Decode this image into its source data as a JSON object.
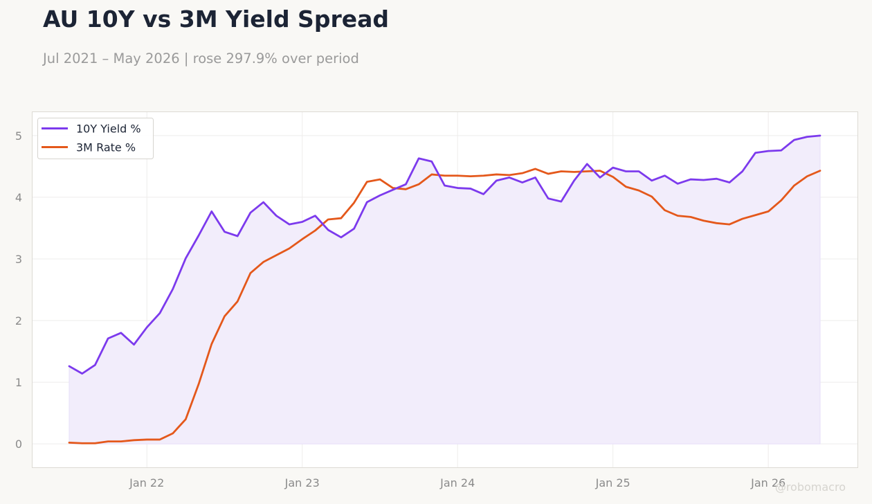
{
  "header": {
    "title": "AU 10Y vs 3M Yield Spread",
    "subtitle": "Jul 2021 – May 2026 | rose 297.9% over period"
  },
  "watermark": "@robomacro",
  "colors": {
    "background": "#f9f8f5",
    "plot_background": "#ffffff",
    "series_10y": "#7c3aed",
    "series_3m": "#e4581b",
    "fill": "#f2edfb",
    "title": "#1c2435",
    "muted": "#9a9a9a"
  },
  "chart_data": {
    "type": "line",
    "title": "AU 10Y vs 3M Yield Spread",
    "subtitle": "Jul 2021 – May 2026 | rose 297.9% over period",
    "xlabel": "",
    "ylabel": "",
    "x_start": "2021-07",
    "x_end": "2026-05",
    "xticks": [
      {
        "date": "2022-01",
        "label": "Jan 22"
      },
      {
        "date": "2023-01",
        "label": "Jan 23"
      },
      {
        "date": "2024-01",
        "label": "Jan 24"
      },
      {
        "date": "2025-01",
        "label": "Jan 25"
      },
      {
        "date": "2026-01",
        "label": "Jan 26"
      }
    ],
    "yticks": [
      0,
      1,
      2,
      3,
      4,
      5
    ],
    "ylim": [
      -0.38,
      5.38
    ],
    "grid": true,
    "legend_position": "top-left",
    "fill_between": "area under 10Y Yield % to zero",
    "x": [
      "2021-07",
      "2021-08",
      "2021-09",
      "2021-10",
      "2021-11",
      "2021-12",
      "2022-01",
      "2022-02",
      "2022-03",
      "2022-04",
      "2022-05",
      "2022-06",
      "2022-07",
      "2022-08",
      "2022-09",
      "2022-10",
      "2022-11",
      "2022-12",
      "2023-01",
      "2023-02",
      "2023-03",
      "2023-04",
      "2023-05",
      "2023-06",
      "2023-07",
      "2023-08",
      "2023-09",
      "2023-10",
      "2023-11",
      "2023-12",
      "2024-01",
      "2024-02",
      "2024-03",
      "2024-04",
      "2024-05",
      "2024-06",
      "2024-07",
      "2024-08",
      "2024-09",
      "2024-10",
      "2024-11",
      "2024-12",
      "2025-01",
      "2025-02",
      "2025-03",
      "2025-04",
      "2025-05",
      "2025-06",
      "2025-07",
      "2025-08",
      "2025-09",
      "2025-10",
      "2025-11",
      "2025-12",
      "2026-01",
      "2026-02",
      "2026-03",
      "2026-04",
      "2026-05"
    ],
    "series": [
      {
        "name": "10Y Yield %",
        "color": "#7c3aed",
        "values": [
          1.26,
          1.14,
          1.28,
          1.71,
          1.8,
          1.61,
          1.89,
          2.12,
          2.51,
          3.01,
          3.38,
          3.77,
          3.44,
          3.37,
          3.75,
          3.92,
          3.7,
          3.56,
          3.6,
          3.7,
          3.47,
          3.35,
          3.49,
          3.92,
          4.03,
          4.12,
          4.21,
          4.63,
          4.58,
          4.19,
          4.15,
          4.14,
          4.05,
          4.27,
          4.32,
          4.24,
          4.32,
          3.98,
          3.93,
          4.27,
          4.54,
          4.32,
          4.48,
          4.42,
          4.42,
          4.27,
          4.35,
          4.22,
          4.29,
          4.28,
          4.3,
          4.24,
          4.42,
          4.72,
          4.75,
          4.76,
          4.93,
          4.98,
          5.0
        ]
      },
      {
        "name": "3M Rate %",
        "color": "#e4581b",
        "values": [
          0.02,
          0.01,
          0.01,
          0.04,
          0.04,
          0.06,
          0.07,
          0.07,
          0.17,
          0.4,
          0.97,
          1.62,
          2.07,
          2.31,
          2.77,
          2.95,
          3.06,
          3.17,
          3.32,
          3.46,
          3.64,
          3.66,
          3.91,
          4.25,
          4.29,
          4.15,
          4.13,
          4.21,
          4.37,
          4.35,
          4.35,
          4.34,
          4.35,
          4.37,
          4.36,
          4.39,
          4.46,
          4.38,
          4.42,
          4.41,
          4.42,
          4.43,
          4.33,
          4.17,
          4.11,
          4.01,
          3.79,
          3.7,
          3.68,
          3.62,
          3.58,
          3.56,
          3.65,
          3.71,
          3.77,
          3.95,
          4.19,
          4.34,
          4.43
        ]
      }
    ]
  }
}
